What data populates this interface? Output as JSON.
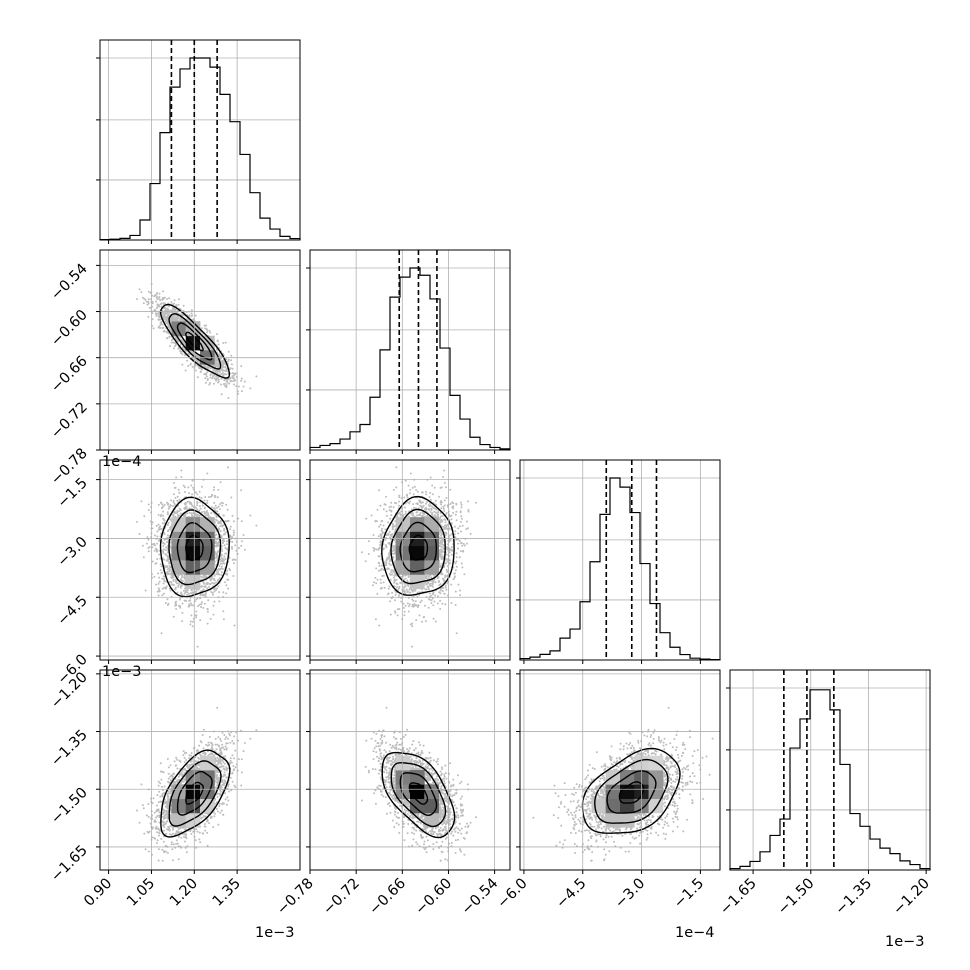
{
  "chart_data": {
    "type": "corner",
    "params": [
      {
        "range": [
          0.00087,
          0.00157
        ],
        "ticks": [
          0.0009,
          0.00105,
          0.0012,
          0.00135
        ],
        "tick_labels": [
          "0.90",
          "1.05",
          "1.20",
          "1.35"
        ],
        "offset": "1e−3",
        "quantiles": [
          0.00112,
          0.0012,
          0.00128
        ],
        "mean": 0.0012,
        "sd": 6e-05
      },
      {
        "range": [
          -0.00078,
          -0.00052
        ],
        "ticks": [
          -0.00078,
          -0.00072,
          -0.00066,
          -0.0006,
          -0.00054
        ],
        "tick_labels": [
          "−0.78",
          "−0.72",
          "−0.66",
          "−0.60",
          "−0.54"
        ],
        "offset": "1e−3",
        "quantiles": [
          -0.000664,
          -0.000639,
          -0.000615
        ],
        "mean": -0.000639,
        "sd": 2.35e-05
      },
      {
        "range": [
          -0.00061,
          -0.0001
        ],
        "ticks": [
          -0.0006,
          -0.00045,
          -0.0003,
          -0.00015
        ],
        "tick_labels": [
          "−6.0",
          "−4.5",
          "−3.0",
          "−1.5"
        ],
        "offset": "1e−4",
        "quantiles": [
          -0.00039,
          -0.000325,
          -0.000262
        ],
        "mean": -0.000325,
        "sd": 6.2e-05
      },
      {
        "range": [
          -0.00171,
          -0.00119
        ],
        "ticks": [
          -0.00165,
          -0.0015,
          -0.00135,
          -0.0012
        ],
        "tick_labels": [
          "−1.65",
          "−1.50",
          "−1.35",
          "−1.20"
        ],
        "offset": "1e−3",
        "quantiles": [
          -0.00157,
          -0.00151,
          -0.00144
        ],
        "mean": -0.00151,
        "sd": 5.5e-05
      }
    ],
    "hist1d": [
      [
        0.002,
        0.004,
        0.009,
        0.025,
        0.11,
        0.31,
        0.59,
        0.84,
        0.94,
        1.0,
        1.0,
        0.95,
        0.8,
        0.65,
        0.47,
        0.26,
        0.12,
        0.06,
        0.02,
        0.008
      ],
      [
        0.014,
        0.025,
        0.035,
        0.06,
        0.1,
        0.14,
        0.29,
        0.55,
        0.84,
        0.95,
        1.0,
        0.96,
        0.83,
        0.56,
        0.3,
        0.17,
        0.07,
        0.03,
        0.014,
        0.006
      ],
      [
        0.008,
        0.016,
        0.031,
        0.05,
        0.12,
        0.17,
        0.32,
        0.54,
        0.8,
        1.0,
        0.95,
        0.81,
        0.53,
        0.31,
        0.15,
        0.07,
        0.03,
        0.01,
        0.005,
        0.002
      ],
      [
        0.008,
        0.02,
        0.047,
        0.1,
        0.19,
        0.28,
        0.67,
        0.83,
        0.99,
        0.99,
        0.88,
        0.58,
        0.31,
        0.24,
        0.17,
        0.12,
        0.09,
        0.05,
        0.03,
        0.008
      ]
    ],
    "correlations": [
      [
        1,
        -0.85,
        0.02,
        0.55
      ],
      [
        -0.85,
        1,
        0.05,
        -0.55
      ],
      [
        0.02,
        0.05,
        1,
        0.4
      ],
      [
        0.55,
        -0.55,
        0.4,
        1
      ]
    ],
    "grid": true
  }
}
